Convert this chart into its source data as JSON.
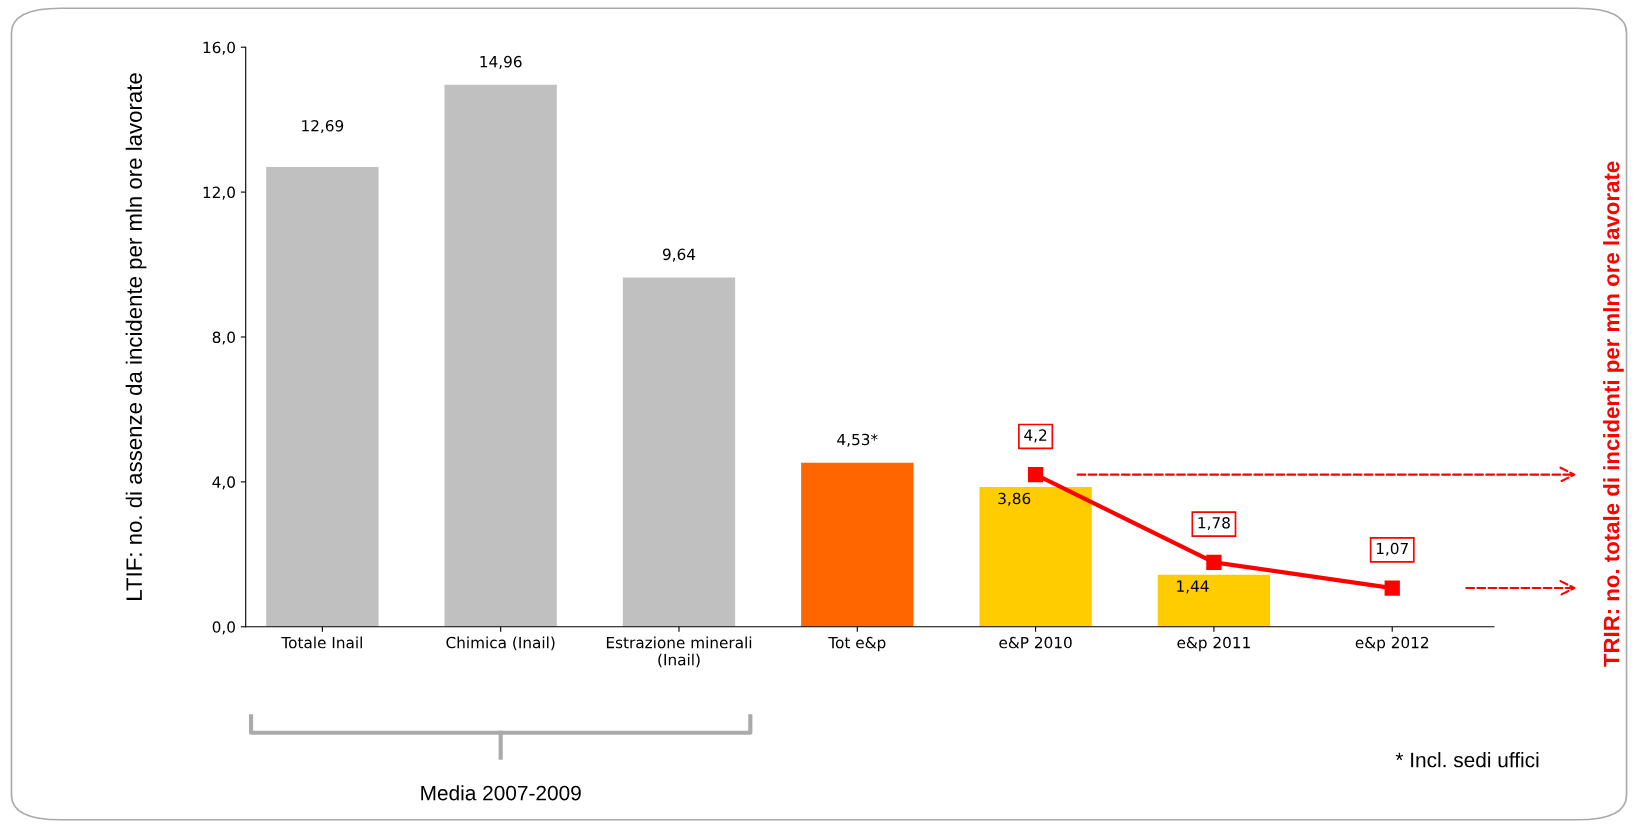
{
  "chart_data": {
    "type": "bar",
    "ylabel": "LTIF: no. di assenze da incidente per mln ore lavorate",
    "y2label": "TRIR: no. totale di incidenti per mln ore lavorate",
    "categories": [
      "Totale Inail",
      "Chimica (Inail)",
      "Estrazione minerali\n(Inail)",
      "Tot e&p",
      "e&P 2010",
      "e&p 2011",
      "e&p 2012"
    ],
    "ylim": [
      0,
      16
    ],
    "yticks": [
      {
        "value": 0,
        "label": "0,0"
      },
      {
        "value": 4,
        "label": "4,0"
      },
      {
        "value": 8,
        "label": "8,0"
      },
      {
        "value": 12,
        "label": "12,0"
      },
      {
        "value": 16,
        "label": "16,0"
      }
    ],
    "series": [
      {
        "colors": [
          "#c0c0c0",
          "#c0c0c0",
          "#c0c0c0",
          "#ff6600",
          "#ffcc00",
          "#ffcc00",
          null
        ],
        "values": [
          12.69,
          14.96,
          9.64,
          4.53,
          3.86,
          1.44,
          null
        ],
        "value_labels": [
          "12,69",
          "14,96",
          "9,64",
          "4,53*",
          "3,86",
          "1,44",
          null
        ]
      },
      {
        "type": "line",
        "color": "#ff0000",
        "marker": "square",
        "values": [
          null,
          null,
          null,
          null,
          4.2,
          1.78,
          1.07
        ],
        "value_labels": [
          null,
          null,
          null,
          null,
          "4,2",
          "1,78",
          "1,07"
        ]
      }
    ],
    "grid": false,
    "legend": false,
    "annotations": [
      "Media 2007-2009",
      "* Incl. sedi uffici"
    ]
  }
}
